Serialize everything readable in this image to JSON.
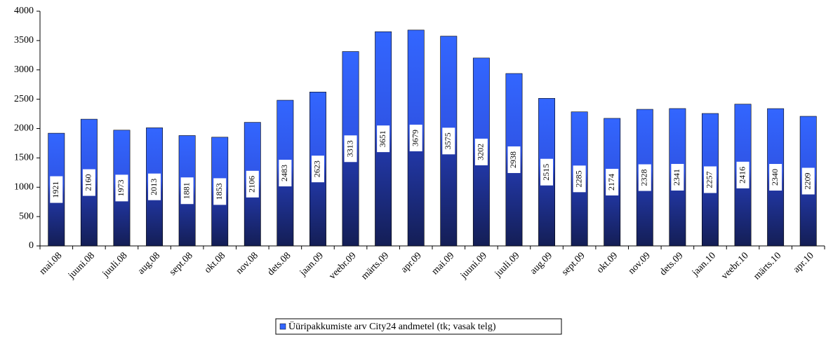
{
  "chart_data": {
    "type": "bar",
    "categories": [
      "mai.08",
      "juuni.08",
      "juuli.08",
      "aug.08",
      "sept.08",
      "okt.08",
      "nov.08",
      "dets.08",
      "jaan.09",
      "veebr.09",
      "märts.09",
      "apr.09",
      "mai.09",
      "juuni.09",
      "juuli.09",
      "aug.09",
      "sept.09",
      "okt.09",
      "nov.09",
      "dets.09",
      "jaan.10",
      "veebr.10",
      "märts.10",
      "apr.10"
    ],
    "series": [
      {
        "name": "Üüripakkumiste arv City24 andmetel (tk; vasak telg)",
        "color": "#3366ff",
        "values": [
          1921,
          2160,
          1973,
          2013,
          1881,
          1853,
          2106,
          2483,
          2623,
          3313,
          3651,
          3679,
          3575,
          3202,
          2938,
          2515,
          2285,
          2174,
          2328,
          2341,
          2257,
          2416,
          2340,
          2209
        ]
      }
    ],
    "ylim": [
      0,
      4000
    ],
    "yticks": [
      0,
      500,
      1000,
      1500,
      2000,
      2500,
      3000,
      3500,
      4000
    ],
    "grid": false,
    "legend": "bottom"
  }
}
